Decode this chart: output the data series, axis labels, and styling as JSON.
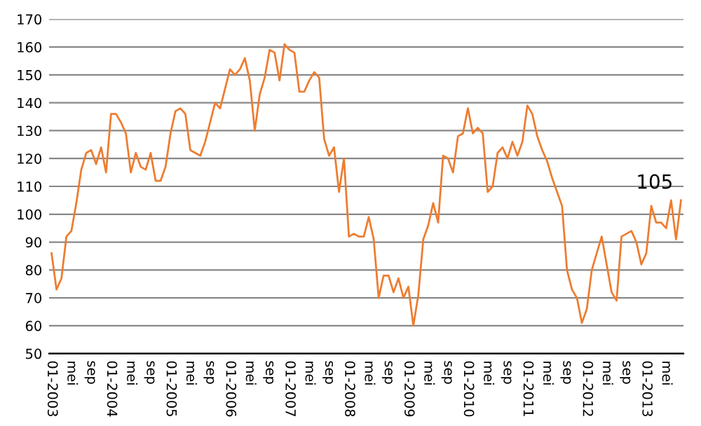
{
  "chart_data": {
    "type": "line",
    "categories": [
      "01-2003",
      null,
      null,
      null,
      "mei",
      null,
      null,
      null,
      "sep",
      null,
      null,
      null,
      "01-2004",
      null,
      null,
      null,
      "mei",
      null,
      null,
      null,
      "sep",
      null,
      null,
      null,
      "01-2005",
      null,
      null,
      null,
      "mei",
      null,
      null,
      null,
      "sep",
      null,
      null,
      null,
      "01-2006",
      null,
      null,
      null,
      "mei",
      null,
      null,
      null,
      "sep",
      null,
      null,
      null,
      "01-2007",
      null,
      null,
      null,
      "mei",
      null,
      null,
      null,
      "sep",
      null,
      null,
      null,
      "01-2008",
      null,
      null,
      null,
      "mei",
      null,
      null,
      null,
      "sep",
      null,
      null,
      null,
      "01-2009",
      null,
      null,
      null,
      "mei",
      null,
      null,
      null,
      "sep",
      null,
      null,
      null,
      "01-2010",
      null,
      null,
      null,
      "mei",
      null,
      null,
      null,
      "sep",
      null,
      null,
      null,
      "01-2011",
      null,
      null,
      null,
      "mei",
      null,
      null,
      null,
      "sep",
      null,
      null,
      null,
      "01-2012",
      null,
      null,
      null,
      "mei",
      null,
      null,
      null,
      "sep",
      null,
      null,
      null,
      "01-2013",
      null,
      null,
      null,
      "mei",
      null,
      null,
      null
    ],
    "series": [
      {
        "color": "#ed7d31",
        "values": [
          86,
          73,
          77,
          92,
          94,
          104,
          116,
          122,
          123,
          118,
          124,
          115,
          136,
          136,
          133,
          129,
          115,
          122,
          117,
          116,
          122,
          112,
          112,
          117,
          129,
          137,
          138,
          136,
          123,
          122,
          121,
          126,
          133,
          140,
          138,
          145,
          152,
          150,
          152,
          156,
          148,
          130,
          143,
          149,
          159,
          158,
          148,
          161,
          159,
          158,
          144,
          144,
          148,
          151,
          149,
          127,
          121,
          124,
          108,
          120,
          92,
          93,
          92,
          92,
          99,
          91,
          70,
          78,
          78,
          72,
          77,
          70,
          74,
          60,
          71,
          91,
          96,
          104,
          97,
          121,
          120,
          115,
          128,
          129,
          138,
          129,
          131,
          129,
          108,
          110,
          122,
          124,
          120,
          126,
          121,
          126,
          139,
          136,
          128,
          123,
          119,
          113,
          108,
          103,
          80,
          73,
          70,
          61,
          66,
          80,
          86,
          92,
          82,
          72,
          69,
          92,
          93,
          94,
          90,
          82,
          86,
          103,
          97,
          97,
          95,
          105,
          91,
          105
        ]
      }
    ],
    "ylim": [
      50,
      170
    ],
    "yticks": [
      50,
      60,
      70,
      80,
      90,
      100,
      110,
      120,
      130,
      140,
      150,
      160,
      170
    ],
    "grid": "y",
    "legend": false,
    "marker": "none",
    "line_style": "solid",
    "annotations": [
      {
        "text": "105",
        "y": 105
      }
    ]
  }
}
